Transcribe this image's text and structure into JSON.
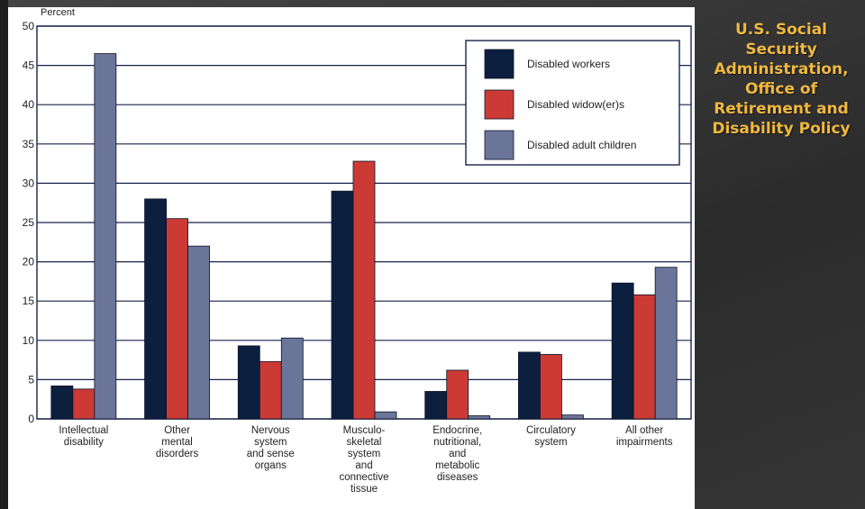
{
  "source": {
    "lines": [
      "U.S. Social",
      "Security",
      "Administration,",
      "Office of",
      "Retirement and",
      "Disability Policy"
    ]
  },
  "colors": {
    "workers": "#0d1f3f",
    "widowers": "#cc3a36",
    "adult_children": "#6a7599",
    "grid": "#16224a",
    "text": "#222222",
    "accent": "#f0b840"
  },
  "chart_data": {
    "type": "bar",
    "ylabel": "Percent",
    "ylim": [
      0,
      50
    ],
    "yticks": [
      0,
      5,
      10,
      15,
      20,
      25,
      30,
      35,
      40,
      45,
      50
    ],
    "grid": true,
    "legend_position": "top-right",
    "categories": [
      [
        "Intellectual",
        "disability"
      ],
      [
        "Other",
        "mental",
        "disorders"
      ],
      [
        "Nervous",
        "system",
        "and sense",
        "organs"
      ],
      [
        "Musculo-",
        "skeletal",
        "system",
        "and",
        "connective",
        "tissue"
      ],
      [
        "Endocrine,",
        "nutritional,",
        "and",
        "metabolic",
        "diseases"
      ],
      [
        "Circulatory",
        "system"
      ],
      [
        "All other",
        "impairments"
      ]
    ],
    "series": [
      {
        "name": "Disabled workers",
        "color": "#0d1f3f",
        "values": [
          4.2,
          28.0,
          9.3,
          29.0,
          3.5,
          8.5,
          17.3
        ]
      },
      {
        "name": "Disabled widow(er)s",
        "color": "#cc3a36",
        "values": [
          3.8,
          25.5,
          7.3,
          32.8,
          6.2,
          8.2,
          15.8
        ]
      },
      {
        "name": "Disabled adult children",
        "color": "#6a7599",
        "values": [
          46.5,
          22.0,
          10.3,
          0.9,
          0.4,
          0.5,
          19.3
        ]
      }
    ]
  }
}
